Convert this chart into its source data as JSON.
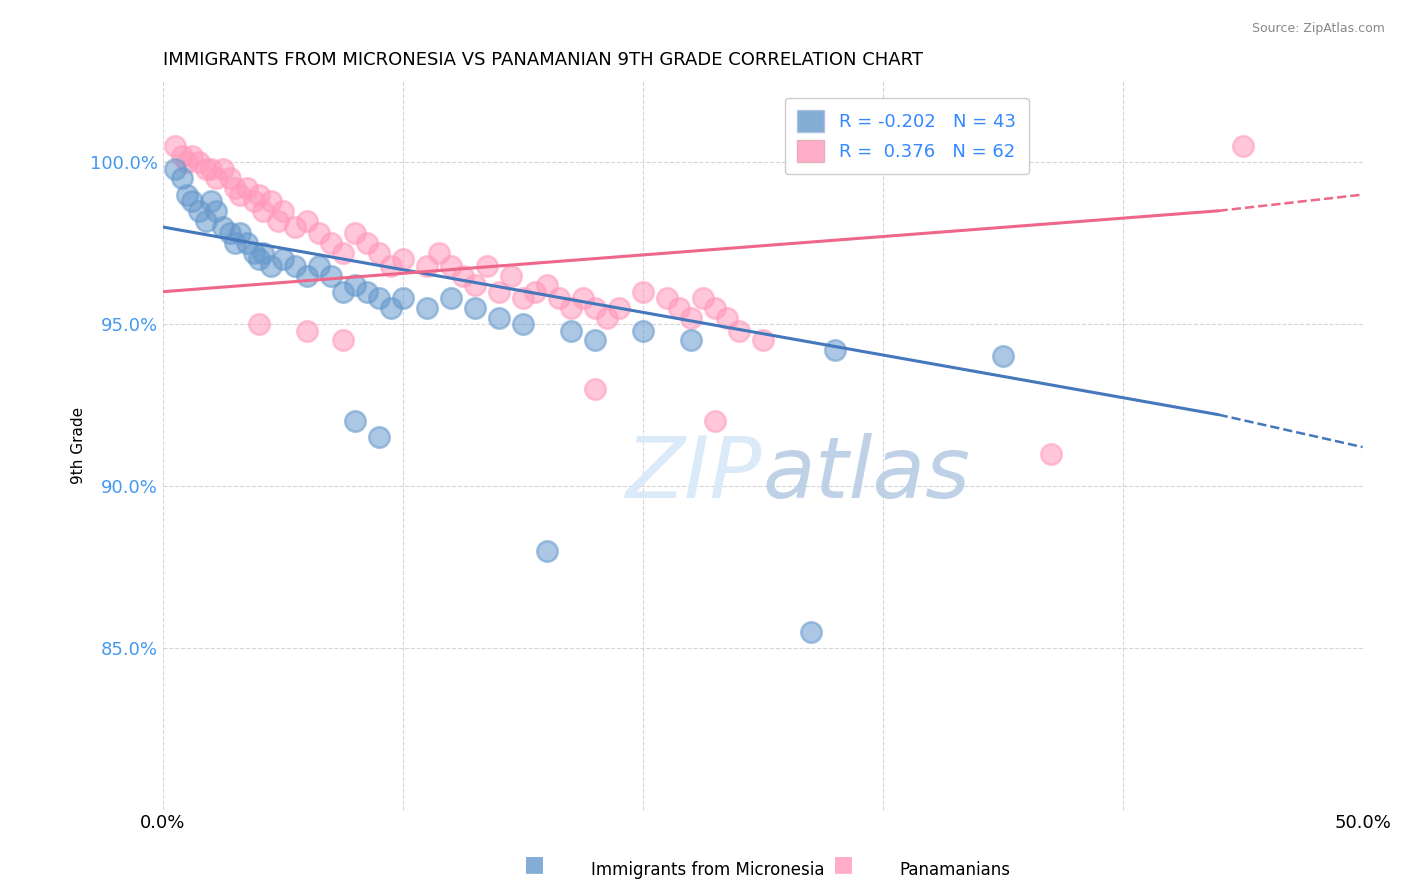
{
  "title": "IMMIGRANTS FROM MICRONESIA VS PANAMANIAN 9TH GRADE CORRELATION CHART",
  "source": "Source: ZipAtlas.com",
  "ylabel": "9th Grade",
  "xlim": [
    0.0,
    0.5
  ],
  "ylim": [
    0.8,
    1.025
  ],
  "yticks": [
    0.85,
    0.9,
    0.95,
    1.0
  ],
  "ytick_labels": [
    "85.0%",
    "90.0%",
    "95.0%",
    "100.0%"
  ],
  "xticks": [
    0.0,
    0.1,
    0.2,
    0.3,
    0.4,
    0.5
  ],
  "xtick_labels": [
    "0.0%",
    "",
    "",
    "",
    "",
    "50.0%"
  ],
  "legend_blue_label": "Immigrants from Micronesia",
  "legend_pink_label": "Panamanians",
  "R_blue": -0.202,
  "N_blue": 43,
  "R_pink": 0.376,
  "N_pink": 62,
  "blue_color": "#6699CC",
  "pink_color": "#FF99BB",
  "blue_line": {
    "x1": 0.0,
    "y1": 0.98,
    "x2": 0.44,
    "y2": 0.922,
    "x3": 0.5,
    "y3": 0.912
  },
  "pink_line": {
    "x1": 0.0,
    "y1": 0.96,
    "x2": 0.44,
    "y2": 0.985,
    "x3": 0.5,
    "y3": 0.99
  },
  "blue_scatter": [
    [
      0.005,
      0.998
    ],
    [
      0.008,
      0.995
    ],
    [
      0.01,
      0.99
    ],
    [
      0.012,
      0.988
    ],
    [
      0.015,
      0.985
    ],
    [
      0.018,
      0.982
    ],
    [
      0.02,
      0.988
    ],
    [
      0.022,
      0.985
    ],
    [
      0.025,
      0.98
    ],
    [
      0.028,
      0.978
    ],
    [
      0.03,
      0.975
    ],
    [
      0.032,
      0.978
    ],
    [
      0.035,
      0.975
    ],
    [
      0.038,
      0.972
    ],
    [
      0.04,
      0.97
    ],
    [
      0.042,
      0.972
    ],
    [
      0.045,
      0.968
    ],
    [
      0.05,
      0.97
    ],
    [
      0.055,
      0.968
    ],
    [
      0.06,
      0.965
    ],
    [
      0.065,
      0.968
    ],
    [
      0.07,
      0.965
    ],
    [
      0.075,
      0.96
    ],
    [
      0.08,
      0.962
    ],
    [
      0.085,
      0.96
    ],
    [
      0.09,
      0.958
    ],
    [
      0.095,
      0.955
    ],
    [
      0.1,
      0.958
    ],
    [
      0.11,
      0.955
    ],
    [
      0.12,
      0.958
    ],
    [
      0.13,
      0.955
    ],
    [
      0.14,
      0.952
    ],
    [
      0.15,
      0.95
    ],
    [
      0.17,
      0.948
    ],
    [
      0.18,
      0.945
    ],
    [
      0.2,
      0.948
    ],
    [
      0.22,
      0.945
    ],
    [
      0.28,
      0.942
    ],
    [
      0.35,
      0.94
    ],
    [
      0.08,
      0.92
    ],
    [
      0.09,
      0.915
    ],
    [
      0.16,
      0.88
    ],
    [
      0.27,
      0.855
    ]
  ],
  "pink_scatter": [
    [
      0.005,
      1.005
    ],
    [
      0.008,
      1.002
    ],
    [
      0.01,
      1.0
    ],
    [
      0.012,
      1.002
    ],
    [
      0.015,
      1.0
    ],
    [
      0.018,
      0.998
    ],
    [
      0.02,
      0.998
    ],
    [
      0.022,
      0.995
    ],
    [
      0.025,
      0.998
    ],
    [
      0.028,
      0.995
    ],
    [
      0.03,
      0.992
    ],
    [
      0.032,
      0.99
    ],
    [
      0.035,
      0.992
    ],
    [
      0.038,
      0.988
    ],
    [
      0.04,
      0.99
    ],
    [
      0.042,
      0.985
    ],
    [
      0.045,
      0.988
    ],
    [
      0.048,
      0.982
    ],
    [
      0.05,
      0.985
    ],
    [
      0.055,
      0.98
    ],
    [
      0.06,
      0.982
    ],
    [
      0.065,
      0.978
    ],
    [
      0.07,
      0.975
    ],
    [
      0.075,
      0.972
    ],
    [
      0.08,
      0.978
    ],
    [
      0.085,
      0.975
    ],
    [
      0.09,
      0.972
    ],
    [
      0.095,
      0.968
    ],
    [
      0.1,
      0.97
    ],
    [
      0.11,
      0.968
    ],
    [
      0.115,
      0.972
    ],
    [
      0.12,
      0.968
    ],
    [
      0.125,
      0.965
    ],
    [
      0.13,
      0.962
    ],
    [
      0.135,
      0.968
    ],
    [
      0.14,
      0.96
    ],
    [
      0.145,
      0.965
    ],
    [
      0.15,
      0.958
    ],
    [
      0.155,
      0.96
    ],
    [
      0.16,
      0.962
    ],
    [
      0.165,
      0.958
    ],
    [
      0.17,
      0.955
    ],
    [
      0.175,
      0.958
    ],
    [
      0.18,
      0.955
    ],
    [
      0.185,
      0.952
    ],
    [
      0.19,
      0.955
    ],
    [
      0.2,
      0.96
    ],
    [
      0.21,
      0.958
    ],
    [
      0.215,
      0.955
    ],
    [
      0.22,
      0.952
    ],
    [
      0.225,
      0.958
    ],
    [
      0.23,
      0.955
    ],
    [
      0.235,
      0.952
    ],
    [
      0.24,
      0.948
    ],
    [
      0.25,
      0.945
    ],
    [
      0.04,
      0.95
    ],
    [
      0.06,
      0.948
    ],
    [
      0.075,
      0.945
    ],
    [
      0.18,
      0.93
    ],
    [
      0.23,
      0.92
    ],
    [
      0.37,
      0.91
    ],
    [
      0.45,
      1.005
    ]
  ]
}
